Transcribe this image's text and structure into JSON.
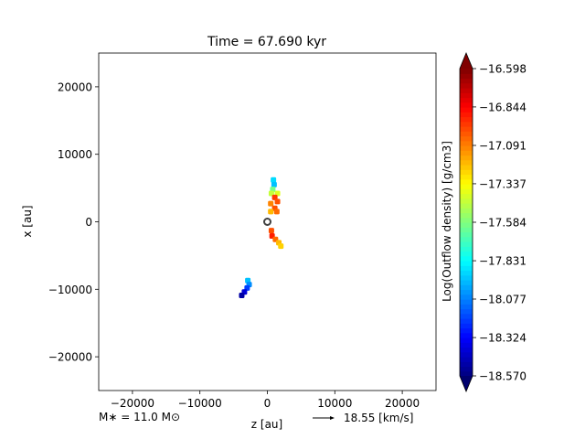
{
  "chart_data": {
    "type": "heatmap",
    "title": "Time = 67.690 kyr",
    "xlabel": "z [au]",
    "ylabel": "x [au]",
    "xlim": [
      -25000,
      25000
    ],
    "ylim": [
      -25000,
      25000
    ],
    "xticks": [
      -20000,
      -10000,
      0,
      10000,
      20000
    ],
    "yticks": [
      -20000,
      -10000,
      0,
      10000,
      20000
    ],
    "xtick_labels": [
      "−20000",
      "−10000",
      "0",
      "10000",
      "20000"
    ],
    "ytick_labels": [
      "−20000",
      "−10000",
      "0",
      "10000",
      "20000"
    ],
    "grid": false,
    "colorbar": {
      "label": "Log(Outflow density) [g/cm3]",
      "colormap": "jet",
      "vmin": -18.57,
      "vmax": -16.598,
      "extend": "both",
      "ticks": [
        -18.57,
        -18.324,
        -18.077,
        -17.831,
        -17.584,
        -17.337,
        -17.091,
        -16.844,
        -16.598
      ],
      "tick_labels": [
        "−18.570",
        "−18.324",
        "−18.077",
        "−17.831",
        "−17.584",
        "−17.337",
        "−17.091",
        "−16.844",
        "−16.598"
      ]
    },
    "star": {
      "x": 0,
      "y": 0
    },
    "patches": [
      {
        "x": 900,
        "y": 6200,
        "value": -17.9
      },
      {
        "x": 1000,
        "y": 5500,
        "value": -17.95
      },
      {
        "x": 800,
        "y": 4800,
        "value": -17.6
      },
      {
        "x": 600,
        "y": 4200,
        "value": -17.45
      },
      {
        "x": 1500,
        "y": 4200,
        "value": -17.4
      },
      {
        "x": 1100,
        "y": 3600,
        "value": -16.95
      },
      {
        "x": 1500,
        "y": 3000,
        "value": -17.0
      },
      {
        "x": 500,
        "y": 2700,
        "value": -17.1
      },
      {
        "x": 1100,
        "y": 2000,
        "value": -17.0
      },
      {
        "x": 500,
        "y": 1500,
        "value": -17.2
      },
      {
        "x": 1400,
        "y": 1500,
        "value": -17.05
      },
      {
        "x": 600,
        "y": -1300,
        "value": -17.0
      },
      {
        "x": 700,
        "y": -2100,
        "value": -16.9
      },
      {
        "x": 1200,
        "y": -2600,
        "value": -17.05
      },
      {
        "x": 1700,
        "y": -3100,
        "value": -17.2
      },
      {
        "x": 2000,
        "y": -3600,
        "value": -17.25
      },
      {
        "x": -2900,
        "y": -8700,
        "value": -17.95
      },
      {
        "x": -2700,
        "y": -9300,
        "value": -18.05
      },
      {
        "x": -3000,
        "y": -9800,
        "value": -18.2
      },
      {
        "x": -3400,
        "y": -10400,
        "value": -18.4
      },
      {
        "x": -3800,
        "y": -10900,
        "value": -18.5
      }
    ]
  },
  "footer": {
    "mass_label": "M$_*$ = 11.0 M$_\\odot$",
    "mass_text": "M∗ = 11.0 M⊙",
    "velocity_label": "18.55 [km/s]"
  }
}
